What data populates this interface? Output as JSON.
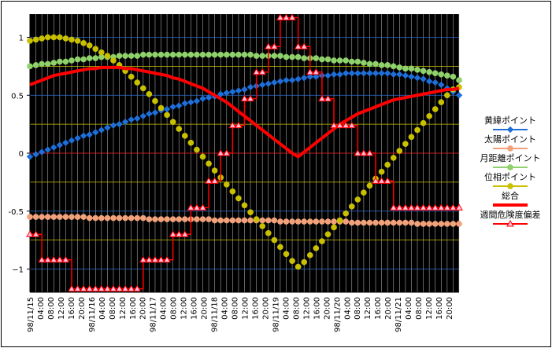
{
  "chart_data": {
    "type": "line",
    "title": "",
    "xlabel": "",
    "ylabel": "",
    "ylim": [
      -1.2,
      1.2
    ],
    "y_ticks": [
      1,
      0.5,
      0,
      -0.5,
      -1
    ],
    "y_tick_labels": [
      "1",
      "0.5",
      "0",
      "-0.5",
      "−1"
    ],
    "x_count": 73,
    "x_tick_labels": [
      "98/11/15",
      "04:00",
      "08:00",
      "12:00",
      "16:00",
      "20:00",
      "98/11/16",
      "04:00",
      "08:00",
      "12:00",
      "16:00",
      "20:00",
      "98/11/17",
      "04:00",
      "08:00",
      "12:00",
      "16:00",
      "20:00",
      "98/11/18",
      "04:00",
      "08:00",
      "12:00",
      "16:00",
      "20:00",
      "98/11/19",
      "04:00",
      "08:00",
      "12:00",
      "16:00",
      "20:00",
      "98/11/20",
      "04:00",
      "08:00",
      "12:00",
      "16:00",
      "20:00",
      "98/11/21",
      "04:00",
      "08:00",
      "12:00",
      "16:00",
      "20:00"
    ],
    "background_color": "#000000",
    "legend_position": "right",
    "series": [
      {
        "name": "黄緯ポイント",
        "color": "#1e6fd9",
        "marker": "diamond",
        "line": false,
        "values": [
          -0.03,
          -0.01,
          0.01,
          0.03,
          0.05,
          0.07,
          0.09,
          0.11,
          0.13,
          0.15,
          0.16,
          0.18,
          0.2,
          0.22,
          0.24,
          0.25,
          0.27,
          0.29,
          0.3,
          0.32,
          0.34,
          0.35,
          0.37,
          0.38,
          0.4,
          0.41,
          0.43,
          0.44,
          0.45,
          0.47,
          0.48,
          0.49,
          0.51,
          0.52,
          0.53,
          0.54,
          0.55,
          0.57,
          0.58,
          0.59,
          0.6,
          0.61,
          0.62,
          0.63,
          0.63,
          0.64,
          0.65,
          0.66,
          0.66,
          0.67,
          0.67,
          0.68,
          0.68,
          0.69,
          0.69,
          0.69,
          0.69,
          0.69,
          0.69,
          0.69,
          0.69,
          0.68,
          0.68,
          0.67,
          0.66,
          0.65,
          0.64,
          0.62,
          0.61,
          0.59,
          0.56,
          0.53,
          0.5
        ]
      },
      {
        "name": "太陽ポイント",
        "color": "#f2a27a",
        "marker": "circle",
        "line": false,
        "values": [
          -0.55,
          -0.55,
          -0.55,
          -0.55,
          -0.55,
          -0.55,
          -0.55,
          -0.55,
          -0.55,
          -0.55,
          -0.56,
          -0.56,
          -0.56,
          -0.56,
          -0.56,
          -0.56,
          -0.56,
          -0.56,
          -0.56,
          -0.56,
          -0.57,
          -0.57,
          -0.57,
          -0.57,
          -0.57,
          -0.57,
          -0.57,
          -0.57,
          -0.57,
          -0.57,
          -0.57,
          -0.58,
          -0.58,
          -0.58,
          -0.58,
          -0.58,
          -0.58,
          -0.58,
          -0.58,
          -0.58,
          -0.58,
          -0.58,
          -0.59,
          -0.59,
          -0.59,
          -0.59,
          -0.59,
          -0.59,
          -0.59,
          -0.59,
          -0.59,
          -0.59,
          -0.59,
          -0.59,
          -0.6,
          -0.6,
          -0.6,
          -0.6,
          -0.6,
          -0.6,
          -0.6,
          -0.6,
          -0.6,
          -0.6,
          -0.6,
          -0.61,
          -0.61,
          -0.61,
          -0.61,
          -0.61,
          -0.61,
          -0.61,
          -0.61
        ]
      },
      {
        "name": "月距離ポイント",
        "color": "#8fd16a",
        "marker": "circle",
        "line": false,
        "values": [
          0.75,
          0.76,
          0.77,
          0.77,
          0.78,
          0.79,
          0.79,
          0.8,
          0.81,
          0.81,
          0.82,
          0.82,
          0.83,
          0.83,
          0.83,
          0.84,
          0.84,
          0.84,
          0.84,
          0.85,
          0.85,
          0.85,
          0.85,
          0.85,
          0.85,
          0.85,
          0.85,
          0.85,
          0.85,
          0.85,
          0.85,
          0.85,
          0.85,
          0.85,
          0.85,
          0.85,
          0.85,
          0.85,
          0.84,
          0.84,
          0.84,
          0.84,
          0.84,
          0.83,
          0.83,
          0.83,
          0.82,
          0.82,
          0.82,
          0.81,
          0.81,
          0.8,
          0.8,
          0.8,
          0.79,
          0.79,
          0.78,
          0.77,
          0.77,
          0.76,
          0.76,
          0.75,
          0.74,
          0.73,
          0.73,
          0.72,
          0.71,
          0.7,
          0.69,
          0.68,
          0.67,
          0.66,
          0.63
        ]
      },
      {
        "name": "位相ポイント",
        "color": "#c8c000",
        "marker": "circle",
        "line": false,
        "values": [
          0.97,
          0.98,
          0.99,
          1.0,
          1.0,
          1.0,
          0.99,
          0.98,
          0.97,
          0.95,
          0.93,
          0.9,
          0.87,
          0.84,
          0.8,
          0.76,
          0.71,
          0.66,
          0.61,
          0.56,
          0.51,
          0.45,
          0.39,
          0.33,
          0.27,
          0.21,
          0.15,
          0.09,
          0.03,
          -0.03,
          -0.09,
          -0.15,
          -0.21,
          -0.27,
          -0.33,
          -0.39,
          -0.45,
          -0.51,
          -0.57,
          -0.63,
          -0.69,
          -0.75,
          -0.81,
          -0.87,
          -0.93,
          -0.98,
          -0.94,
          -0.88,
          -0.82,
          -0.76,
          -0.7,
          -0.64,
          -0.58,
          -0.52,
          -0.46,
          -0.4,
          -0.34,
          -0.28,
          -0.22,
          -0.16,
          -0.1,
          -0.04,
          0.02,
          0.08,
          0.14,
          0.2,
          0.26,
          0.32,
          0.38,
          0.44,
          0.5,
          0.55,
          0.57
        ]
      },
      {
        "name": "総合",
        "color": "#ff0000",
        "marker": "none",
        "line": true,
        "values": [
          0.59,
          0.61,
          0.63,
          0.65,
          0.67,
          0.68,
          0.69,
          0.7,
          0.71,
          0.72,
          0.73,
          0.73,
          0.74,
          0.74,
          0.74,
          0.74,
          0.73,
          0.73,
          0.72,
          0.71,
          0.7,
          0.69,
          0.68,
          0.67,
          0.65,
          0.64,
          0.62,
          0.6,
          0.58,
          0.56,
          0.53,
          0.5,
          0.47,
          0.44,
          0.4,
          0.36,
          0.32,
          0.28,
          0.24,
          0.2,
          0.16,
          0.12,
          0.08,
          0.04,
          0.0,
          -0.03,
          0.01,
          0.05,
          0.09,
          0.13,
          0.17,
          0.21,
          0.25,
          0.28,
          0.31,
          0.34,
          0.36,
          0.38,
          0.4,
          0.42,
          0.44,
          0.46,
          0.47,
          0.48,
          0.49,
          0.5,
          0.51,
          0.52,
          0.53,
          0.54,
          0.55,
          0.55,
          0.56
        ]
      },
      {
        "name": "週間危険度偏差",
        "color": "#ff0000",
        "marker": "triangle",
        "marker_fill": "#ffc0e0",
        "line": true,
        "step": true,
        "values": [
          -0.7,
          -0.7,
          -0.92,
          -0.92,
          -0.92,
          -0.92,
          -0.92,
          -1.17,
          -1.17,
          -1.17,
          -1.17,
          -1.17,
          -1.17,
          -1.17,
          -1.17,
          -1.17,
          -1.17,
          -1.17,
          -1.17,
          -0.92,
          -0.92,
          -0.92,
          -0.92,
          -0.92,
          -0.7,
          -0.7,
          -0.7,
          -0.47,
          -0.47,
          -0.47,
          -0.24,
          -0.24,
          0.0,
          0.0,
          0.24,
          0.24,
          0.47,
          0.47,
          0.7,
          0.7,
          0.92,
          0.92,
          1.17,
          1.17,
          1.17,
          0.92,
          0.92,
          0.7,
          0.7,
          0.47,
          0.47,
          0.24,
          0.24,
          0.24,
          0.24,
          0.0,
          0.0,
          0.0,
          -0.24,
          -0.24,
          -0.24,
          -0.47,
          -0.47,
          -0.47,
          -0.47,
          -0.47,
          -0.47,
          -0.47,
          -0.47,
          -0.47,
          -0.47,
          -0.47,
          -0.47
        ]
      }
    ]
  }
}
